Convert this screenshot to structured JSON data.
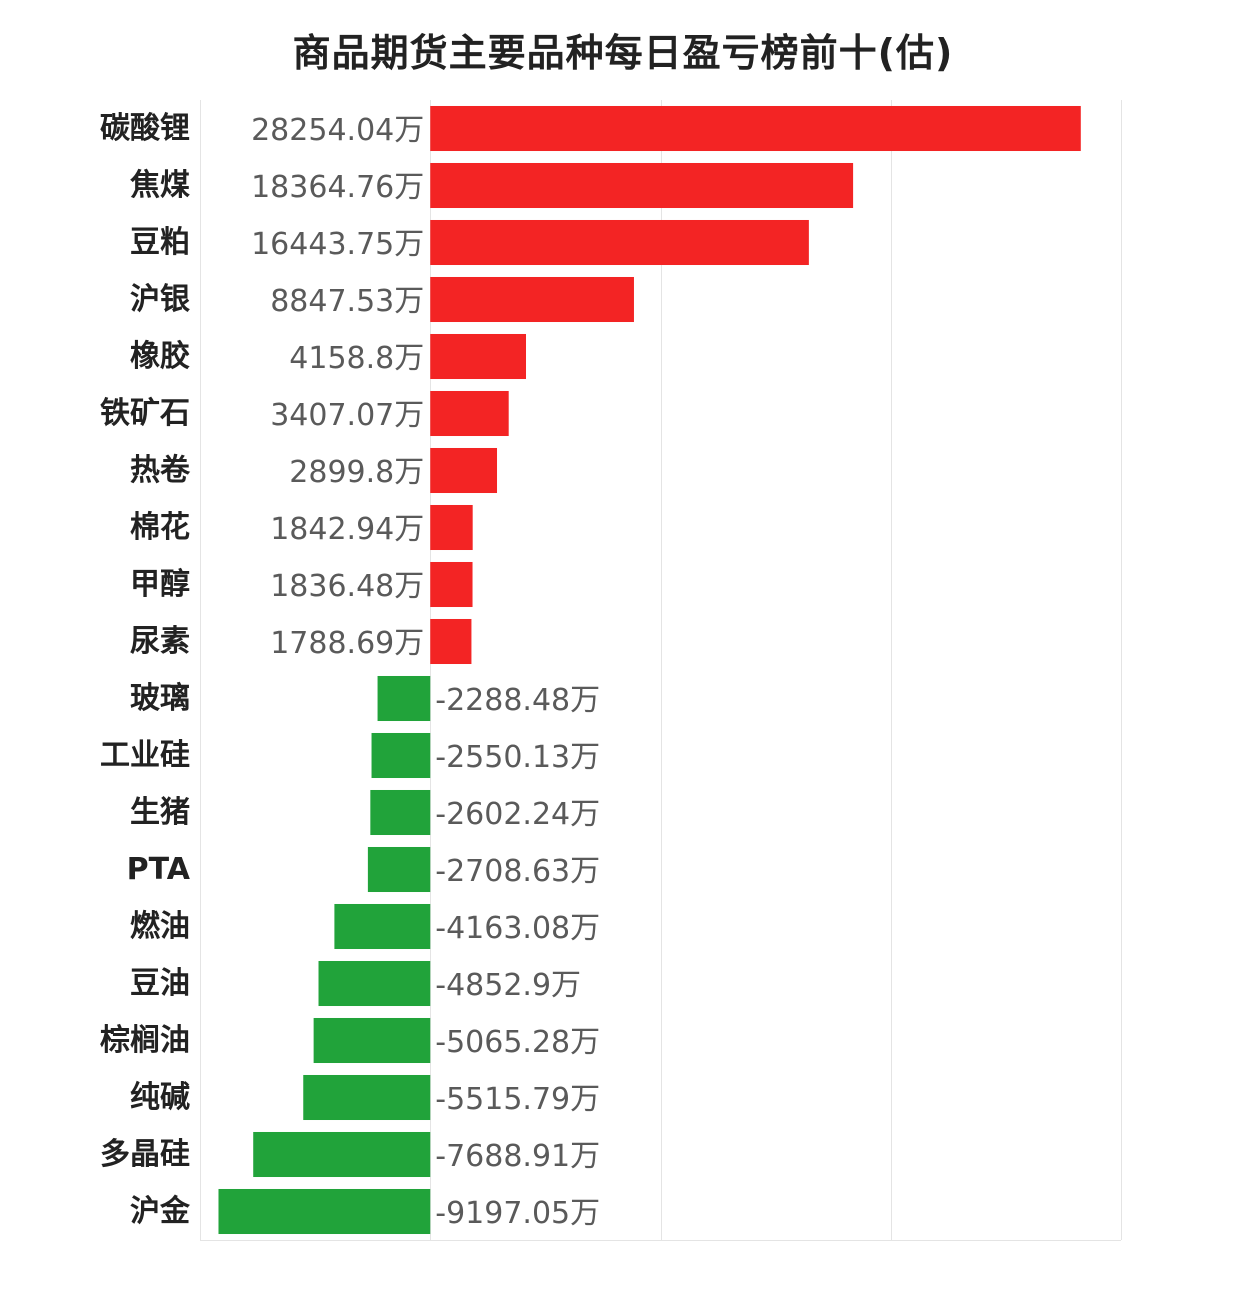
{
  "chart_data": {
    "type": "bar",
    "orientation": "horizontal",
    "title": "商品期货主要品种每日盈亏榜前十(估)",
    "categories": [
      "碳酸锂",
      "焦煤",
      "豆粕",
      "沪银",
      "橡胶",
      "铁矿石",
      "热卷",
      "棉花",
      "甲醇",
      "尿素",
      "玻璃",
      "工业硅",
      "生猪",
      "PTA",
      "燃油",
      "豆油",
      "棕榈油",
      "纯碱",
      "多晶硅",
      "沪金"
    ],
    "values": [
      28254.04,
      18364.76,
      16443.75,
      8847.53,
      4158.8,
      3407.07,
      2899.8,
      1842.94,
      1836.48,
      1788.69,
      -2288.48,
      -2550.13,
      -2602.24,
      -2708.63,
      -4163.08,
      -4852.9,
      -5065.28,
      -5515.79,
      -7688.91,
      -9197.05
    ],
    "value_labels": [
      "28254.04万",
      "18364.76万",
      "16443.75万",
      "8847.53万",
      "4158.8万",
      "3407.07万",
      "2899.8万",
      "1842.94万",
      "1836.48万",
      "1788.69万",
      "-2288.48万",
      "-2550.13万",
      "-2602.24万",
      "-2708.63万",
      "-4163.08万",
      "-4852.9万",
      "-5065.28万",
      "-5515.79万",
      "-7688.91万",
      "-9197.05万"
    ],
    "xlim": [
      -10000,
      30000
    ],
    "grid": true,
    "colors": {
      "positive": "#f32424",
      "negative": "#21a33a"
    }
  }
}
